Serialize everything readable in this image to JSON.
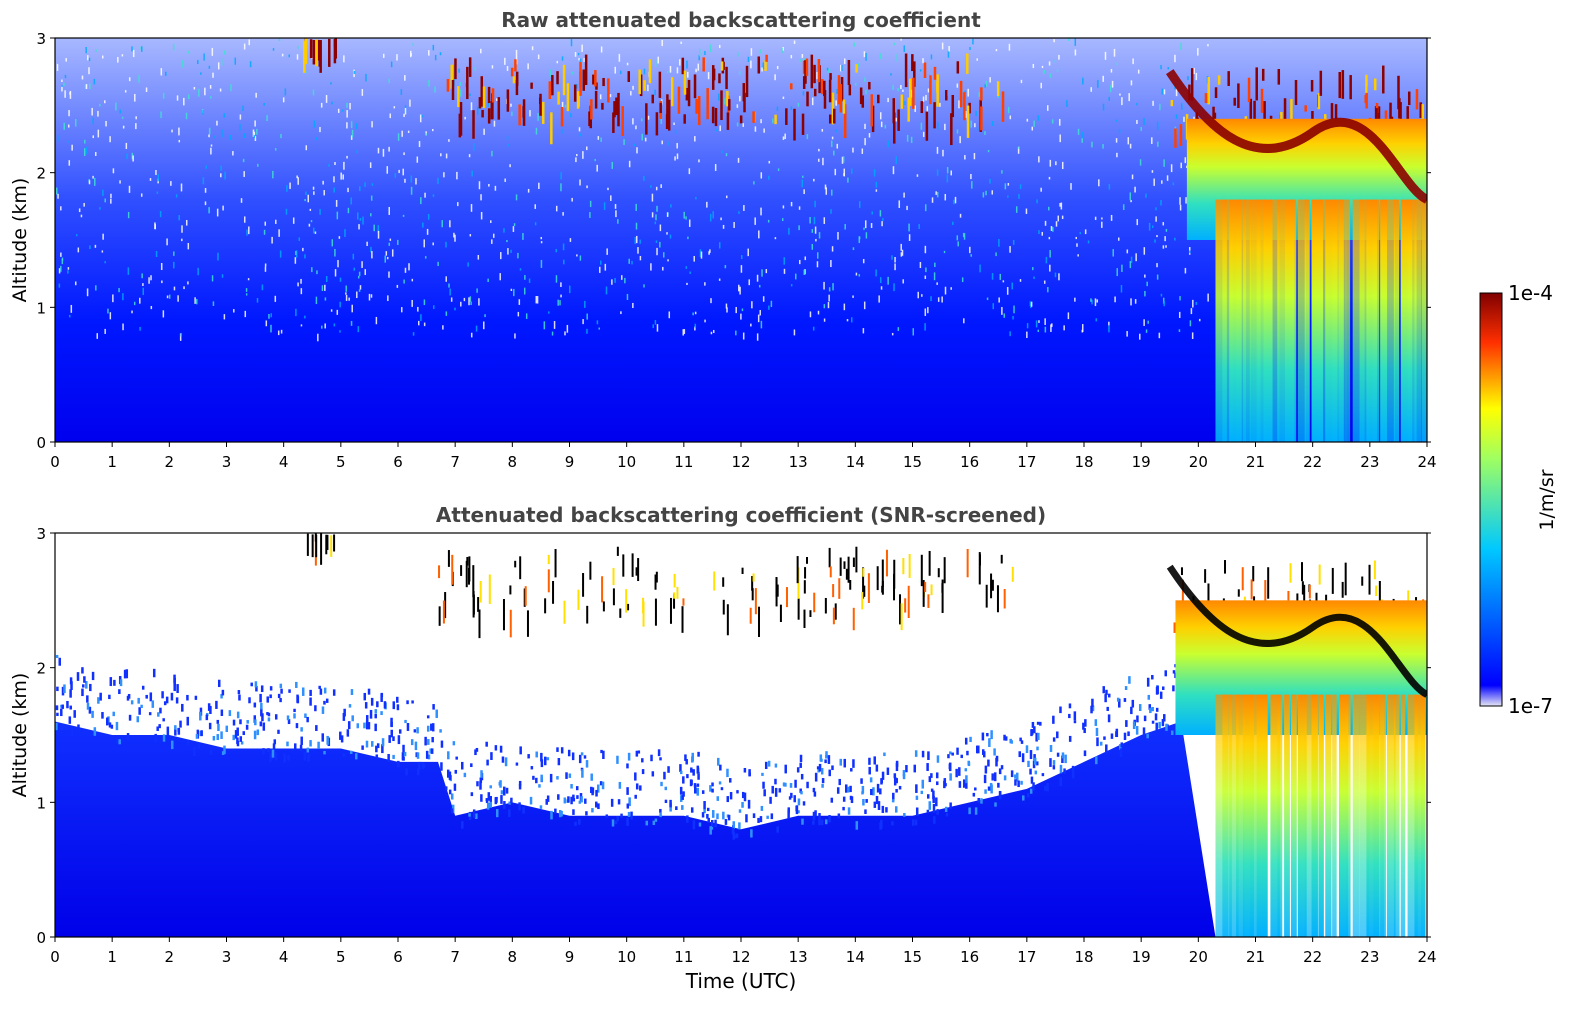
{
  "chart_data": [
    {
      "type": "heatmap",
      "title": "Raw attenuated backscattering coefficient",
      "xlabel": "",
      "ylabel": "Altitude (km)",
      "xlim": [
        0,
        24
      ],
      "ylim": [
        0,
        3
      ],
      "x_ticks": [
        "0",
        "1",
        "2",
        "3",
        "4",
        "5",
        "6",
        "7",
        "8",
        "9",
        "10",
        "11",
        "12",
        "13",
        "14",
        "15",
        "16",
        "17",
        "18",
        "19",
        "20",
        "21",
        "22",
        "23",
        "24"
      ],
      "y_ticks": [
        "0",
        "1",
        "2",
        "3"
      ],
      "cloud_layers": [
        {
          "t_start": 6.7,
          "t_end": 16.8,
          "alt_base_km": 1.7,
          "alt_top_km": 2.9,
          "level": "1e-4"
        },
        {
          "t_start": 19.5,
          "t_end": 24.0,
          "alt_base_km": 1.5,
          "alt_top_km": 2.8,
          "level": "1e-4"
        },
        {
          "t_start": 4.2,
          "t_end": 4.9,
          "alt_base_km": 2.95,
          "alt_top_km": 3.0,
          "level": "1e-4"
        }
      ],
      "precipitation_streaks": {
        "t_start": 20.3,
        "t_end": 24.0,
        "alt_base_km": 0,
        "alt_top_km": 1.5
      }
    },
    {
      "type": "heatmap",
      "title": "Attenuated backscattering coefficient (SNR-screened)",
      "xlabel": "Time (UTC)",
      "ylabel": "Altitude (km)",
      "xlim": [
        0,
        24
      ],
      "ylim": [
        0,
        3
      ],
      "x_ticks": [
        "0",
        "1",
        "2",
        "3",
        "4",
        "5",
        "6",
        "7",
        "8",
        "9",
        "10",
        "11",
        "12",
        "13",
        "14",
        "15",
        "16",
        "17",
        "18",
        "19",
        "20",
        "21",
        "22",
        "23",
        "24"
      ],
      "y_ticks": [
        "0",
        "1",
        "2",
        "3"
      ],
      "screened_boundary_km": [
        [
          0,
          1.6
        ],
        [
          1,
          1.5
        ],
        [
          2,
          1.5
        ],
        [
          3,
          1.4
        ],
        [
          4,
          1.4
        ],
        [
          5,
          1.4
        ],
        [
          6,
          1.3
        ],
        [
          6.7,
          1.3
        ],
        [
          7,
          0.9
        ],
        [
          8,
          1.0
        ],
        [
          9,
          0.9
        ],
        [
          10,
          0.9
        ],
        [
          11,
          0.9
        ],
        [
          12,
          0.8
        ],
        [
          13,
          0.9
        ],
        [
          14,
          0.9
        ],
        [
          15,
          0.9
        ],
        [
          16,
          1.0
        ],
        [
          17,
          1.1
        ],
        [
          18,
          1.3
        ],
        [
          19,
          1.5
        ],
        [
          19.7,
          1.6
        ]
      ]
    }
  ],
  "colorbar": {
    "max_label": "1e-4",
    "min_label": "1e-7",
    "unit_label": "1/m/sr",
    "colormap": "jet",
    "stops": [
      "#e6e6f5",
      "#0000ff",
      "#00ffff",
      "#ffff00",
      "#ff0000",
      "#800000"
    ]
  }
}
